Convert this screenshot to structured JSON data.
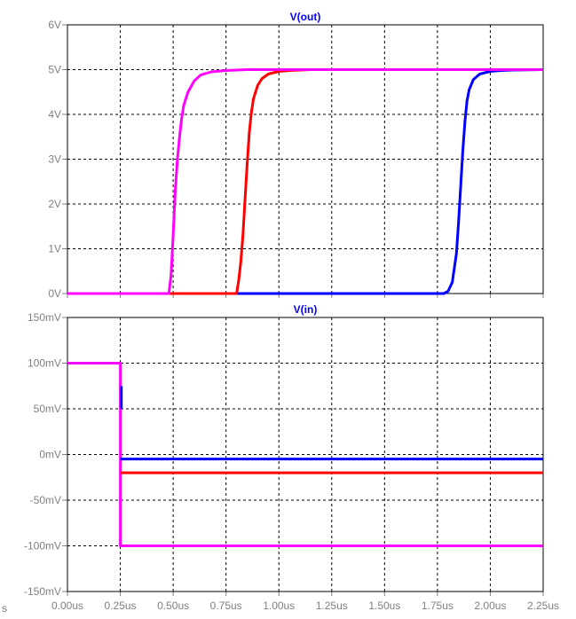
{
  "colors": {
    "series": [
      "#0000ff",
      "#ff0000",
      "#ff00ff"
    ],
    "grid": "#000000",
    "axis_text": "#808080",
    "title": "#0000ff"
  },
  "stray_label": "s",
  "chart_data": [
    {
      "type": "line",
      "title": "V(out)",
      "xlabel": "",
      "ylabel": "",
      "xlim": [
        0,
        2.25
      ],
      "ylim": [
        0,
        6
      ],
      "grid": true,
      "x_tick_values": [
        0,
        0.25,
        0.5,
        0.75,
        1.0,
        1.25,
        1.5,
        1.75,
        2.0,
        2.25
      ],
      "y_tick_values": [
        0,
        1,
        2,
        3,
        4,
        5,
        6
      ],
      "y_tick_labels": [
        "0V",
        "1V",
        "2V",
        "3V",
        "4V",
        "5V",
        "6V"
      ],
      "series": [
        {
          "color": "#0000ff",
          "x": [
            0,
            1.78,
            1.8,
            1.82,
            1.84,
            1.85,
            1.86,
            1.87,
            1.88,
            1.89,
            1.9,
            1.92,
            1.95,
            2.0,
            2.05,
            2.1,
            2.25
          ],
          "y": [
            0,
            0,
            0.05,
            0.25,
            0.9,
            1.6,
            2.4,
            3.2,
            3.85,
            4.3,
            4.55,
            4.78,
            4.9,
            4.96,
            4.98,
            4.99,
            5.0
          ]
        },
        {
          "color": "#ff0000",
          "x": [
            0,
            0.8,
            0.81,
            0.82,
            0.83,
            0.84,
            0.85,
            0.86,
            0.87,
            0.88,
            0.9,
            0.92,
            0.95,
            1.0,
            1.05,
            1.15,
            2.25
          ],
          "y": [
            0,
            0,
            0.3,
            0.7,
            1.3,
            2.1,
            2.9,
            3.6,
            4.05,
            4.35,
            4.65,
            4.8,
            4.9,
            4.96,
            4.98,
            5.0,
            5.0
          ]
        },
        {
          "color": "#ff00ff",
          "x": [
            0,
            0.48,
            0.49,
            0.5,
            0.51,
            0.52,
            0.53,
            0.54,
            0.55,
            0.57,
            0.6,
            0.63,
            0.68,
            0.75,
            0.85,
            2.25
          ],
          "y": [
            0,
            0,
            0.4,
            1.3,
            2.3,
            3.0,
            3.5,
            3.9,
            4.2,
            4.5,
            4.75,
            4.88,
            4.95,
            4.98,
            5.0,
            5.0
          ]
        }
      ]
    },
    {
      "type": "line",
      "title": "V(in)",
      "xlabel": "",
      "ylabel": "",
      "xlim": [
        0,
        2.25
      ],
      "ylim": [
        -150,
        150
      ],
      "grid": true,
      "x_tick_values": [
        0,
        0.25,
        0.5,
        0.75,
        1.0,
        1.25,
        1.5,
        1.75,
        2.0,
        2.25
      ],
      "x_tick_labels": [
        "0.00us",
        "0.25us",
        "0.50us",
        "0.75us",
        "1.00us",
        "1.25us",
        "1.50us",
        "1.75us",
        "2.00us",
        "2.25us"
      ],
      "y_tick_values": [
        -150,
        -100,
        -50,
        0,
        50,
        100,
        150
      ],
      "y_tick_labels": [
        "-150mV",
        "-100mV",
        "-50mV",
        "0mV",
        "50mV",
        "100mV",
        "150mV"
      ],
      "series": [
        {
          "color": "#ff00ff",
          "x": [
            0,
            0.25,
            0.25,
            2.25
          ],
          "y": [
            100,
            100,
            -100,
            -100
          ]
        },
        {
          "color": "#ff0000",
          "x": [
            0.25,
            2.25
          ],
          "y": [
            -20,
            -20
          ]
        },
        {
          "color": "#0000ff",
          "x": [
            0.25,
            2.25
          ],
          "y": [
            -5,
            -5
          ]
        },
        {
          "color": "#0000ff",
          "x": [
            0.255,
            0.255
          ],
          "y": [
            75,
            50
          ]
        }
      ]
    }
  ]
}
